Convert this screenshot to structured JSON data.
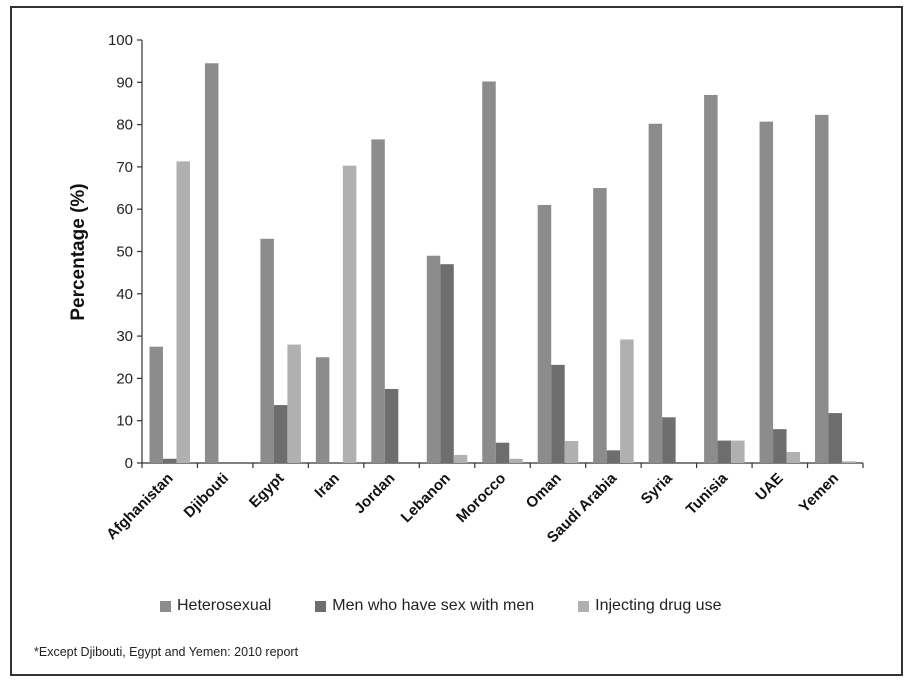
{
  "chart_data": {
    "type": "bar",
    "ylabel": "Percentage (%)",
    "ylim": [
      0,
      100
    ],
    "yticks": [
      0,
      10,
      20,
      30,
      40,
      50,
      60,
      70,
      80,
      90,
      100
    ],
    "categories": [
      "Afghanistan",
      "Djibouti",
      "Egypt",
      "Iran",
      "Jordan",
      "Lebanon",
      "Morocco",
      "Oman",
      "Saudi Arabia",
      "Syria",
      "Tunisia",
      "UAE",
      "Yemen"
    ],
    "series": [
      {
        "name": "Heterosexual",
        "color": "#8c8c8c",
        "values": [
          27.5,
          94.5,
          53,
          25,
          76.5,
          49,
          90.2,
          61,
          65,
          80.2,
          87,
          80.7,
          82.3
        ]
      },
      {
        "name": "Men who have sex with men",
        "color": "#6e6e6e",
        "values": [
          1,
          0,
          13.7,
          0,
          17.5,
          47,
          4.8,
          23.2,
          3,
          10.8,
          5.3,
          8,
          11.8
        ]
      },
      {
        "name": "Injecting drug use",
        "color": "#b0b0b0",
        "values": [
          71.3,
          0,
          28,
          70.3,
          0,
          1.9,
          1,
          5.2,
          29.2,
          0,
          5.3,
          2.6,
          0.4
        ]
      }
    ],
    "legend_position": "bottom",
    "grid": false
  },
  "footnote": "*Except Djibouti, Egypt and Yemen: 2010 report"
}
